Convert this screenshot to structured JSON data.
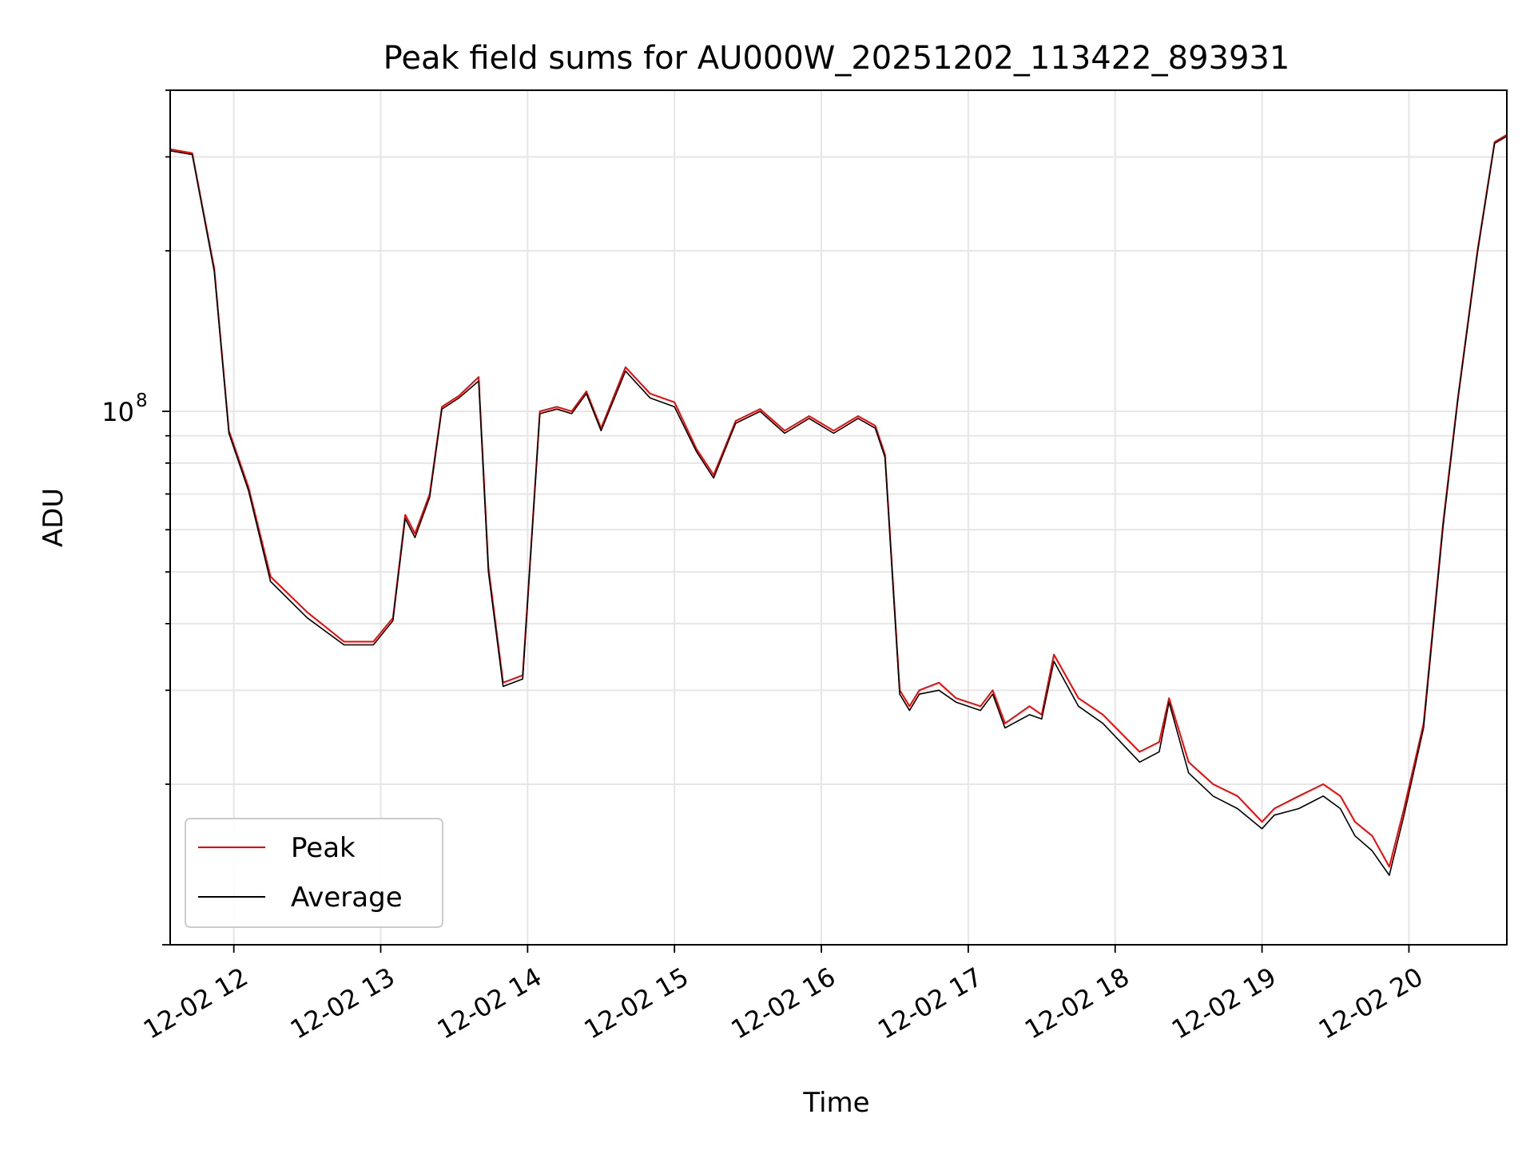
{
  "chart_data": {
    "type": "line",
    "title": "Peak field sums for AU000W_20251202_113422_893931",
    "xlabel": "Time",
    "ylabel": "ADU",
    "y_scale": "log",
    "ylim": [
      10000000,
      400000000
    ],
    "xlim": [
      "2025-12-02 11:34",
      "2025-12-02 20:40"
    ],
    "x_ticks": [
      {
        "label": "12-02 12",
        "value": "2025-12-02 12:00"
      },
      {
        "label": "12-02 13",
        "value": "2025-12-02 13:00"
      },
      {
        "label": "12-02 14",
        "value": "2025-12-02 14:00"
      },
      {
        "label": "12-02 15",
        "value": "2025-12-02 15:00"
      },
      {
        "label": "12-02 16",
        "value": "2025-12-02 16:00"
      },
      {
        "label": "12-02 17",
        "value": "2025-12-02 17:00"
      },
      {
        "label": "12-02 18",
        "value": "2025-12-02 18:00"
      },
      {
        "label": "12-02 19",
        "value": "2025-12-02 19:00"
      },
      {
        "label": "12-02 20",
        "value": "2025-12-02 20:00"
      }
    ],
    "y_ticks": [
      {
        "label": "10",
        "exponent": "8",
        "value": 100000000
      }
    ],
    "grid": true,
    "legend_position": "lower-left",
    "series": [
      {
        "name": "Peak",
        "color": "#ff0000",
        "x": [
          "2025-12-02 11:34",
          "2025-12-02 11:43",
          "2025-12-02 11:52",
          "2025-12-02 11:58",
          "2025-12-02 12:06",
          "2025-12-02 12:15",
          "2025-12-02 12:30",
          "2025-12-02 12:45",
          "2025-12-02 12:50",
          "2025-12-02 12:57",
          "2025-12-02 13:05",
          "2025-12-02 13:10",
          "2025-12-02 13:14",
          "2025-12-02 13:20",
          "2025-12-02 13:25",
          "2025-12-02 13:32",
          "2025-12-02 13:40",
          "2025-12-02 13:44",
          "2025-12-02 13:50",
          "2025-12-02 13:58",
          "2025-12-02 14:05",
          "2025-12-02 14:12",
          "2025-12-02 14:18",
          "2025-12-02 14:24",
          "2025-12-02 14:30",
          "2025-12-02 14:40",
          "2025-12-02 14:50",
          "2025-12-02 15:00",
          "2025-12-02 15:09",
          "2025-12-02 15:16",
          "2025-12-02 15:25",
          "2025-12-02 15:35",
          "2025-12-02 15:45",
          "2025-12-02 15:55",
          "2025-12-02 16:05",
          "2025-12-02 16:15",
          "2025-12-02 16:22",
          "2025-12-02 16:26",
          "2025-12-02 16:32",
          "2025-12-02 16:36",
          "2025-12-02 16:40",
          "2025-12-02 16:48",
          "2025-12-02 16:55",
          "2025-12-02 17:05",
          "2025-12-02 17:10",
          "2025-12-02 17:15",
          "2025-12-02 17:25",
          "2025-12-02 17:30",
          "2025-12-02 17:35",
          "2025-12-02 17:45",
          "2025-12-02 17:55",
          "2025-12-02 18:10",
          "2025-12-02 18:18",
          "2025-12-02 18:22",
          "2025-12-02 18:30",
          "2025-12-02 18:40",
          "2025-12-02 18:50",
          "2025-12-02 19:00",
          "2025-12-02 19:05",
          "2025-12-02 19:15",
          "2025-12-02 19:25",
          "2025-12-02 19:32",
          "2025-12-02 19:38",
          "2025-12-02 19:45",
          "2025-12-02 19:52",
          "2025-12-02 19:58",
          "2025-12-02 20:06",
          "2025-12-02 20:14",
          "2025-12-02 20:20",
          "2025-12-02 20:28",
          "2025-12-02 20:35",
          "2025-12-02 20:40"
        ],
        "y": [
          310000000,
          305000000,
          185000000,
          92000000,
          72000000,
          49000000,
          42000000,
          37000000,
          37000000,
          37000000,
          41000000,
          64000000,
          59000000,
          70000000,
          102000000,
          107000000,
          116000000,
          51000000,
          31000000,
          32000000,
          100000000,
          102000000,
          100000000,
          109000000,
          93000000,
          121000000,
          108000000,
          104000000,
          85000000,
          76000000,
          96000000,
          101000000,
          92000000,
          98000000,
          92000000,
          98000000,
          94000000,
          83000000,
          30000000,
          28000000,
          30000000,
          31000000,
          29000000,
          28000000,
          30000000,
          26000000,
          28000000,
          27000000,
          35000000,
          29000000,
          27000000,
          23000000,
          24000000,
          29000000,
          22000000,
          20000000,
          19000000,
          17000000,
          18000000,
          19000000,
          20000000,
          19000000,
          17000000,
          16000000,
          14000000,
          18000000,
          26000000,
          62000000,
          106000000,
          200000000,
          320000000,
          330000000
        ]
      },
      {
        "name": "Average",
        "color": "#000000",
        "x": [
          "2025-12-02 11:34",
          "2025-12-02 11:43",
          "2025-12-02 11:52",
          "2025-12-02 11:58",
          "2025-12-02 12:06",
          "2025-12-02 12:15",
          "2025-12-02 12:30",
          "2025-12-02 12:45",
          "2025-12-02 12:50",
          "2025-12-02 12:57",
          "2025-12-02 13:05",
          "2025-12-02 13:10",
          "2025-12-02 13:14",
          "2025-12-02 13:20",
          "2025-12-02 13:25",
          "2025-12-02 13:32",
          "2025-12-02 13:40",
          "2025-12-02 13:44",
          "2025-12-02 13:50",
          "2025-12-02 13:58",
          "2025-12-02 14:05",
          "2025-12-02 14:12",
          "2025-12-02 14:18",
          "2025-12-02 14:24",
          "2025-12-02 14:30",
          "2025-12-02 14:40",
          "2025-12-02 14:50",
          "2025-12-02 15:00",
          "2025-12-02 15:09",
          "2025-12-02 15:16",
          "2025-12-02 15:25",
          "2025-12-02 15:35",
          "2025-12-02 15:45",
          "2025-12-02 15:55",
          "2025-12-02 16:05",
          "2025-12-02 16:15",
          "2025-12-02 16:22",
          "2025-12-02 16:26",
          "2025-12-02 16:32",
          "2025-12-02 16:36",
          "2025-12-02 16:40",
          "2025-12-02 16:48",
          "2025-12-02 16:55",
          "2025-12-02 17:05",
          "2025-12-02 17:10",
          "2025-12-02 17:15",
          "2025-12-02 17:25",
          "2025-12-02 17:30",
          "2025-12-02 17:35",
          "2025-12-02 17:45",
          "2025-12-02 17:55",
          "2025-12-02 18:10",
          "2025-12-02 18:18",
          "2025-12-02 18:22",
          "2025-12-02 18:30",
          "2025-12-02 18:40",
          "2025-12-02 18:50",
          "2025-12-02 19:00",
          "2025-12-02 19:05",
          "2025-12-02 19:15",
          "2025-12-02 19:25",
          "2025-12-02 19:32",
          "2025-12-02 19:38",
          "2025-12-02 19:45",
          "2025-12-02 19:52",
          "2025-12-02 19:58",
          "2025-12-02 20:06",
          "2025-12-02 20:14",
          "2025-12-02 20:20",
          "2025-12-02 20:28",
          "2025-12-02 20:35",
          "2025-12-02 20:40"
        ],
        "y": [
          308000000,
          303000000,
          183000000,
          91000000,
          71000000,
          48000000,
          41000000,
          36500000,
          36500000,
          36500000,
          40500000,
          63000000,
          58000000,
          69000000,
          101000000,
          106000000,
          114000000,
          50000000,
          30500000,
          31500000,
          99000000,
          101000000,
          99000000,
          108000000,
          92000000,
          119000000,
          106000000,
          102000000,
          84000000,
          75000000,
          95000000,
          100000000,
          91000000,
          97000000,
          91000000,
          97000000,
          93000000,
          82000000,
          29500000,
          27500000,
          29500000,
          30000000,
          28500000,
          27500000,
          29500000,
          25500000,
          27000000,
          26500000,
          34000000,
          28000000,
          26000000,
          22000000,
          23000000,
          28500000,
          21000000,
          19000000,
          18000000,
          16500000,
          17500000,
          18000000,
          19000000,
          18000000,
          16000000,
          15000000,
          13500000,
          17500000,
          25500000,
          61000000,
          105000000,
          198000000,
          318000000,
          328000000
        ]
      }
    ]
  }
}
